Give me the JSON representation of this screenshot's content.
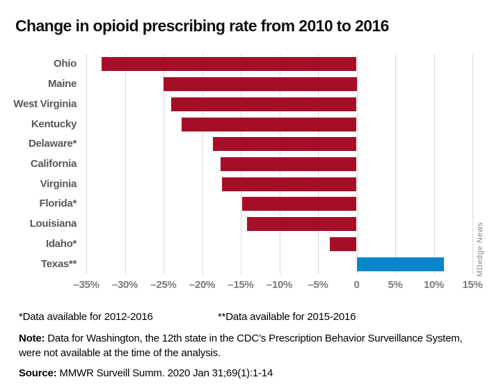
{
  "title": "Change in opioid prescribing rate from 2010 to 2016",
  "watermark": "MDedge News",
  "footnotes": {
    "asterisk": "*Data available for 2012-2016",
    "double_asterisk": "**Data available for 2015-2016",
    "note_label": "Note:",
    "note_text": " Data for Washington, the 12th state in the CDC’s Prescription Behavior Surveillance System, were not available at the time of the analysis.",
    "source_label": "Source:",
    "source_text": " MMWR Surveill Summ. 2020 Jan 31;69(1):1-14"
  },
  "colors": {
    "negative_bar": "#a60e27",
    "positive_bar": "#0786c9",
    "gridline": "#d9d9d9",
    "state_label": "#57585a",
    "tick_label": "#7b7c7f",
    "watermark": "#848484"
  },
  "chart_data": {
    "type": "bar",
    "orientation": "horizontal",
    "title": "Change in opioid prescribing rate from 2010 to 2016",
    "categories": [
      "Ohio",
      "Maine",
      "West Virginia",
      "Kentucky",
      "Delaware*",
      "California",
      "Virginia",
      "Florida*",
      "Louisiana",
      "Idaho*",
      "Texas**"
    ],
    "values": [
      -33,
      -25,
      -24,
      -22.7,
      -18.6,
      -17.6,
      -17.4,
      -14.8,
      -14.2,
      -3.5,
      11.3
    ],
    "unit": "%",
    "xlim": [
      -35,
      15
    ],
    "x_ticks": {
      "values": [
        -35,
        -30,
        -25,
        -20,
        -15,
        -10,
        -5,
        0,
        5,
        10,
        15
      ],
      "labels": [
        "–35%",
        "–30%",
        "–25%",
        "–20%",
        "–15%",
        "–10%",
        "–5%",
        "0",
        "5%",
        "10%",
        "15%"
      ]
    },
    "grid": "vertical-only",
    "legend": "none",
    "annotations": [
      "*Data available for 2012-2016",
      "**Data available for 2015-2016"
    ]
  }
}
